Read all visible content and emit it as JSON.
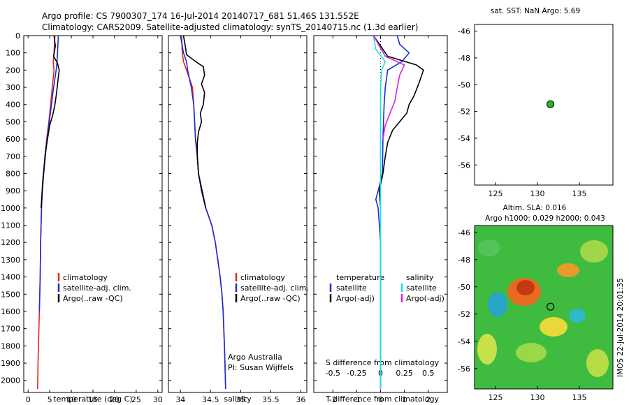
{
  "header": {
    "line1": "Argo profile: CS 7900307_174 16-Jul-2014 20140717_681 51.46S 131.552E",
    "line2": "Climatology: CARS2009. Satellite-adjusted climatology: synTS_20140715.nc (1.3d earlier)"
  },
  "colors": {
    "climatology": "#e8231c",
    "satellite": "#1a2ed6",
    "argo": "#000000",
    "sat_salinity": "#19e0e0",
    "argo_salinity": "#e020e0",
    "marker": "#22bb22"
  },
  "chart_data": [
    {
      "type": "line",
      "id": "temperature",
      "xlabel": "temperature (deg C)",
      "ylabel": "",
      "xlim": [
        -1,
        31
      ],
      "ylim": [
        2070,
        0
      ],
      "x_ticks": [
        "0",
        "5",
        "10",
        "15",
        "20",
        "25",
        "30"
      ],
      "y_ticks": [
        "0",
        "100",
        "200",
        "300",
        "400",
        "500",
        "600",
        "700",
        "800",
        "900",
        "1000",
        "1100",
        "1200",
        "1300",
        "1400",
        "1500",
        "1600",
        "1700",
        "1800",
        "1900",
        "2000"
      ],
      "legend": [
        "climatology",
        "satellite-adj. clim.",
        "Argo(..raw -QC)"
      ],
      "series": [
        {
          "name": "climatology",
          "color": "red",
          "points": [
            [
              6.2,
              0
            ],
            [
              6.1,
              50
            ],
            [
              6.0,
              100
            ],
            [
              5.8,
              150
            ],
            [
              6.0,
              200
            ],
            [
              5.6,
              300
            ],
            [
              5.2,
              400
            ],
            [
              4.8,
              500
            ],
            [
              4.3,
              600
            ],
            [
              3.9,
              700
            ],
            [
              3.6,
              800
            ],
            [
              3.3,
              900
            ],
            [
              3.1,
              1000
            ],
            [
              2.9,
              1200
            ],
            [
              2.8,
              1400
            ],
            [
              2.6,
              1600
            ],
            [
              2.4,
              1800
            ],
            [
              2.3,
              1900
            ],
            [
              2.2,
              2050
            ]
          ]
        },
        {
          "name": "satellite-adj. clim.",
          "color": "blue",
          "points": [
            [
              7.0,
              0
            ],
            [
              6.9,
              50
            ],
            [
              6.8,
              100
            ],
            [
              6.7,
              150
            ],
            [
              6.5,
              200
            ],
            [
              5.9,
              300
            ],
            [
              5.4,
              400
            ],
            [
              4.9,
              500
            ],
            [
              4.4,
              600
            ],
            [
              4.0,
              700
            ],
            [
              3.6,
              800
            ],
            [
              3.3,
              900
            ],
            [
              3.1,
              1000
            ],
            [
              2.9,
              1200
            ],
            [
              2.8,
              1400
            ],
            [
              2.6,
              1600
            ]
          ]
        },
        {
          "name": "Argo(..raw -QC)",
          "color": "black",
          "points": [
            [
              6.0,
              0
            ],
            [
              6.3,
              60
            ],
            [
              5.9,
              120
            ],
            [
              6.8,
              160
            ],
            [
              7.2,
              200
            ],
            [
              6.9,
              260
            ],
            [
              6.6,
              330
            ],
            [
              6.2,
              400
            ],
            [
              5.7,
              460
            ],
            [
              5.0,
              520
            ],
            [
              4.5,
              600
            ],
            [
              4.0,
              680
            ],
            [
              3.7,
              760
            ],
            [
              3.4,
              840
            ],
            [
              3.2,
              920
            ],
            [
              3.0,
              1000
            ]
          ]
        }
      ]
    },
    {
      "type": "line",
      "id": "salinity",
      "xlabel": "salinity",
      "ylabel": "",
      "xlim": [
        33.8,
        36.1
      ],
      "ylim": [
        2070,
        0
      ],
      "x_ticks": [
        "34",
        "34.5",
        "35",
        "35.5",
        "36"
      ],
      "legend": [
        "climatology",
        "satellite-adj. clim.",
        "Argo(..raw -QC)"
      ],
      "series": [
        {
          "name": "climatology",
          "color": "red",
          "points": [
            [
              34.02,
              0
            ],
            [
              34.03,
              100
            ],
            [
              34.05,
              150
            ],
            [
              34.1,
              200
            ],
            [
              34.15,
              250
            ],
            [
              34.2,
              300
            ],
            [
              34.22,
              400
            ],
            [
              34.25,
              600
            ],
            [
              34.28,
              700
            ],
            [
              34.3,
              800
            ],
            [
              34.35,
              900
            ],
            [
              34.42,
              1000
            ],
            [
              34.52,
              1100
            ],
            [
              34.58,
              1200
            ],
            [
              34.62,
              1300
            ],
            [
              34.66,
              1400
            ],
            [
              34.69,
              1500
            ],
            [
              34.71,
              1600
            ],
            [
              34.72,
              1700
            ],
            [
              34.73,
              1800
            ],
            [
              34.74,
              1900
            ],
            [
              34.75,
              2050
            ]
          ]
        },
        {
          "name": "satellite-adj. clim.",
          "color": "blue",
          "points": [
            [
              34.0,
              0
            ],
            [
              34.05,
              100
            ],
            [
              34.1,
              150
            ],
            [
              34.12,
              200
            ],
            [
              34.15,
              250
            ],
            [
              34.18,
              300
            ],
            [
              34.22,
              400
            ],
            [
              34.25,
              600
            ],
            [
              34.28,
              700
            ],
            [
              34.3,
              800
            ],
            [
              34.35,
              900
            ],
            [
              34.42,
              1000
            ],
            [
              34.52,
              1100
            ],
            [
              34.58,
              1200
            ],
            [
              34.62,
              1300
            ],
            [
              34.66,
              1400
            ],
            [
              34.69,
              1500
            ],
            [
              34.71,
              1600
            ],
            [
              34.72,
              1700
            ],
            [
              34.73,
              1800
            ],
            [
              34.74,
              1900
            ],
            [
              34.75,
              2050
            ]
          ]
        },
        {
          "name": "Argo(..raw -QC)",
          "color": "black",
          "points": [
            [
              34.05,
              0
            ],
            [
              34.08,
              60
            ],
            [
              34.1,
              110
            ],
            [
              34.25,
              150
            ],
            [
              34.38,
              180
            ],
            [
              34.4,
              230
            ],
            [
              34.35,
              280
            ],
            [
              34.4,
              330
            ],
            [
              34.38,
              400
            ],
            [
              34.33,
              450
            ],
            [
              34.35,
              500
            ],
            [
              34.3,
              560
            ],
            [
              34.28,
              620
            ],
            [
              34.28,
              700
            ],
            [
              34.3,
              800
            ],
            [
              34.36,
              900
            ],
            [
              34.42,
              1000
            ]
          ]
        }
      ]
    },
    {
      "type": "line",
      "id": "difference",
      "xlabel": "T difference from climatology",
      "x2label": "S difference from climatology",
      "xlim": [
        -2.8,
        2.8
      ],
      "ylim": [
        2070,
        0
      ],
      "x_ticks": [
        "-2",
        "-1",
        "0",
        "1",
        "2"
      ],
      "x2_ticks": [
        "-0.5",
        "-0.25",
        "0",
        "0.25",
        "0.5"
      ],
      "legend_left_title": "temperature",
      "legend_right_title": "salinity",
      "legend": [
        "satellite",
        "Argo(-adj)",
        "satellite",
        "Argo(-adj)"
      ],
      "series": [
        {
          "name": "satellite",
          "color": "blue",
          "points": [
            [
              0.7,
              0
            ],
            [
              0.8,
              50
            ],
            [
              1.2,
              100
            ],
            [
              0.9,
              150
            ],
            [
              0.3,
              200
            ],
            [
              0.2,
              300
            ],
            [
              0.15,
              400
            ],
            [
              0.1,
              600
            ],
            [
              0.08,
              800
            ],
            [
              -0.1,
              900
            ],
            [
              -0.2,
              950
            ],
            [
              -0.1,
              1000
            ],
            [
              -0.05,
              1100
            ],
            [
              0,
              1200
            ],
            [
              0,
              1400
            ],
            [
              0,
              2050
            ]
          ]
        },
        {
          "name": "Argo(-adj)",
          "color": "black",
          "points": [
            [
              -0.3,
              0
            ],
            [
              0.3,
              120
            ],
            [
              1.5,
              170
            ],
            [
              1.8,
              200
            ],
            [
              1.6,
              280
            ],
            [
              1.4,
              350
            ],
            [
              1.2,
              400
            ],
            [
              1.1,
              450
            ],
            [
              0.8,
              500
            ],
            [
              0.5,
              550
            ],
            [
              0.3,
              620
            ],
            [
              0.2,
              700
            ],
            [
              0.1,
              800
            ],
            [
              -0.05,
              900
            ],
            [
              0,
              1000
            ]
          ]
        },
        {
          "name": "satellite",
          "color": "cyan",
          "points": [
            [
              -0.3,
              0
            ],
            [
              -0.2,
              80
            ],
            [
              0.2,
              150
            ],
            [
              0.05,
              200
            ],
            [
              0,
              300
            ],
            [
              0,
              500
            ],
            [
              0,
              700
            ],
            [
              0,
              2050
            ]
          ]
        },
        {
          "name": "Argo(-adj)",
          "color": "magenta",
          "points": [
            [
              -0.3,
              0
            ],
            [
              0.2,
              120
            ],
            [
              1.0,
              170
            ],
            [
              0.8,
              230
            ],
            [
              0.7,
              300
            ],
            [
              0.6,
              380
            ],
            [
              0.4,
              450
            ],
            [
              0.2,
              520
            ],
            [
              0.1,
              600
            ]
          ]
        }
      ]
    },
    {
      "type": "scatter",
      "id": "sst-map",
      "title": "sat. SST: NaN Argo: 5.69",
      "xlim": [
        122.5,
        139
      ],
      "ylim": [
        -57.5,
        -45.5
      ],
      "x_ticks": [
        "125",
        "130",
        "135"
      ],
      "y_ticks": [
        "-46",
        "-48",
        "-50",
        "-52",
        "-54",
        "-56"
      ],
      "points": [
        [
          131.55,
          -51.46
        ]
      ]
    },
    {
      "type": "heatmap",
      "id": "sla-map",
      "title_line1": "Altim. SLA: 0.016",
      "title_line2": "Argo h1000: 0.029 h2000: 0.043",
      "xlim": [
        122.5,
        139
      ],
      "ylim": [
        -57.5,
        -45.5
      ],
      "x_ticks": [
        "125",
        "130",
        "135"
      ],
      "y_ticks": [
        "-46",
        "-48",
        "-50",
        "-52",
        "-54",
        "-56"
      ],
      "points": [
        [
          131.55,
          -51.46
        ]
      ]
    }
  ],
  "side_text": "IMOS 22-Jul-2014 20:01:35",
  "credit": {
    "line1": "Argo Australia",
    "line2": "PI: Susan Wijffels"
  }
}
